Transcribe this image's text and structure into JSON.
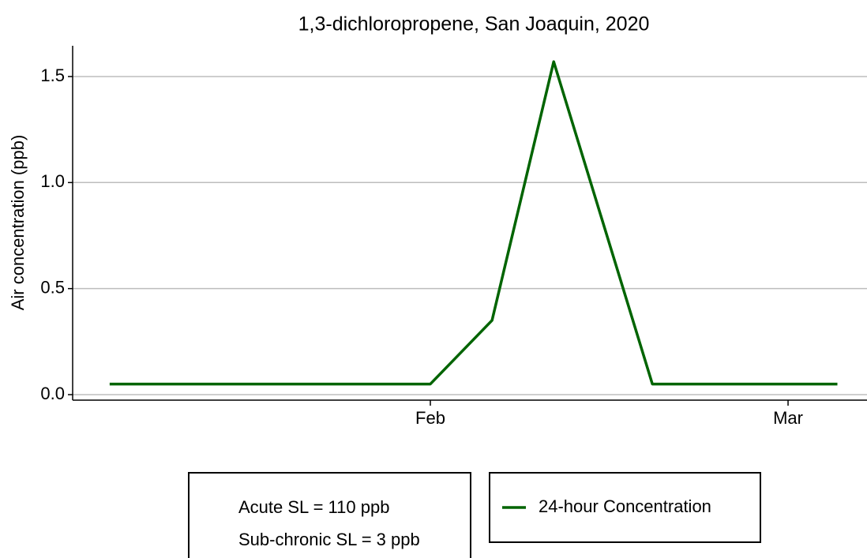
{
  "chart_data": {
    "type": "line",
    "title": "1,3-dichloropropene, San Joaquin, 2020",
    "y_label": "Air  concentration  (ppb)",
    "x": [
      6,
      32,
      37,
      42,
      50,
      65
    ],
    "series": [
      {
        "name": "24-hour Concentration",
        "color": "#006400",
        "values": [
          0.05,
          0.05,
          0.35,
          1.57,
          0.05,
          0.05
        ]
      }
    ],
    "xlim": [
      3,
      67.4
    ],
    "xticks": [
      {
        "value": 32,
        "label": "Feb"
      },
      {
        "value": 61,
        "label": "Mar"
      }
    ],
    "ylim": [
      -0.026,
      1.645
    ],
    "yticks": [
      {
        "value": 0,
        "label": "0.0"
      },
      0.5,
      {
        "value": 1,
        "label": "1.0"
      },
      1.5
    ],
    "grid": true,
    "annotations": [
      "Acute SL = 110 ppb",
      "Sub-chronic SL = 3 ppb"
    ]
  }
}
